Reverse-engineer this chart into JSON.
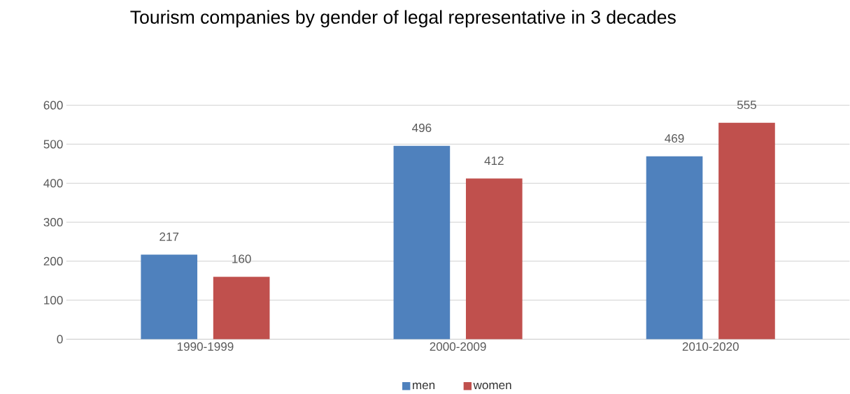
{
  "chart_data": {
    "type": "bar",
    "title": "Tourism companies by gender of legal representative in 3 decades",
    "categories": [
      "1990-1999",
      "2000-2009",
      "2010-2020"
    ],
    "series": [
      {
        "name": "men",
        "color": "#4f81bd",
        "values": [
          217,
          496,
          469
        ]
      },
      {
        "name": "women",
        "color": "#c0504d",
        "values": [
          160,
          412,
          555
        ]
      }
    ],
    "ylim": [
      0,
      600
    ],
    "yticks": [
      0,
      100,
      200,
      300,
      400,
      500,
      600
    ],
    "grid": "y",
    "legend": "bottom",
    "data_labels": true
  }
}
